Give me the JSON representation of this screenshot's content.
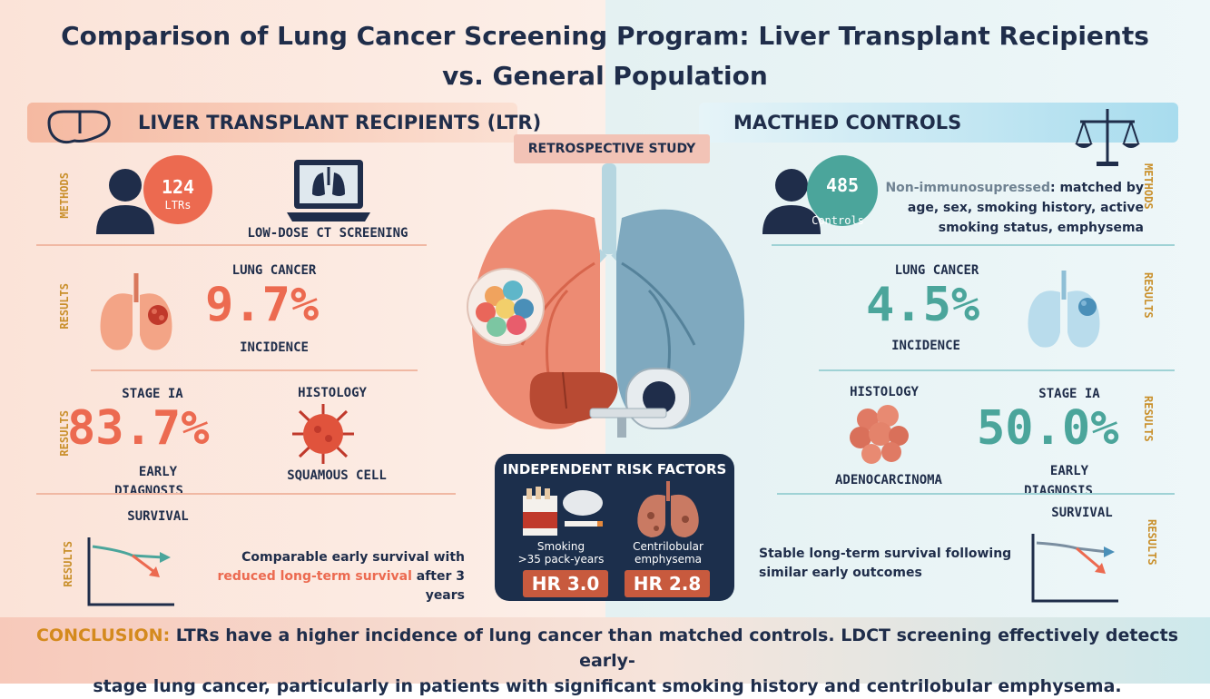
{
  "title": {
    "line1": "Comparison of Lung Cancer Screening Program: Liver Transplant Recipients",
    "line2": "vs. General Population"
  },
  "retrospective_label": "RETROSPECTIVE STUDY",
  "left": {
    "header": "LIVER TRANSPLANT RECIPIENTS (LTR)",
    "methods_label": "METHODS",
    "results_label": "RESULTS",
    "count": "124",
    "count_unit": "LTRs",
    "screening_label": "LOW-DOSE CT SCREENING",
    "incidence_title": "LUNG CANCER",
    "incidence_value": "9.7%",
    "incidence_caption": "INCIDENCE",
    "stage_title": "STAGE IA",
    "stage_value": "83.7%",
    "stage_caption_1": "EARLY",
    "stage_caption_2": "DIAGNOSIS",
    "histology_title": "HISTOLOGY",
    "histology_value": "SQUAMOUS CELL",
    "survival_title": "SURVIVAL",
    "survival_text_1": "Comparable early survival with",
    "survival_text_highlight": "reduced long-term survival",
    "survival_text_2": " after 3 years"
  },
  "right": {
    "header": "MACTHED CONTROLS",
    "methods_label": "METHODS",
    "results_label": "RESULTS",
    "count": "485",
    "count_unit": "Controls",
    "controls_bold_prefix": "Non-immunosupressed",
    "controls_text_1": ": matched by",
    "controls_text_2": "age, sex, smoking history, active",
    "controls_text_3": "smoking status, emphysema",
    "incidence_title": "LUNG CANCER",
    "incidence_value": "4.5%",
    "incidence_caption": "INCIDENCE",
    "histology_title": "HISTOLOGY",
    "histology_value": "ADENOCARCINOMA",
    "stage_title": "STAGE IA",
    "stage_value": "50.0%",
    "stage_caption_1": "EARLY",
    "stage_caption_2": "DIAGNOSIS",
    "survival_title": "SURVIVAL",
    "survival_text_1": "Stable long-term survival following",
    "survival_text_2": "similar early outcomes"
  },
  "risk": {
    "title": "INDEPENDENT RISK FACTORS",
    "smoking_label_1": "Smoking",
    "smoking_label_2": ">35 pack-years",
    "smoking_hr": "HR 3.0",
    "emphysema_label_1": "Centrilobular",
    "emphysema_label_2": "emphysema",
    "emphysema_hr": "HR 2.8"
  },
  "conclusion": {
    "label": "CONCLUSION:",
    "text_1": " LTRs have a higher incidence of lung cancer than matched controls. LDCT screening  effectively detects early-",
    "text_2": "stage lung cancer, particularly in patients with significant smoking history and centrilobular emphysema."
  },
  "colors": {
    "navy": "#1f2d4a",
    "coral": "#ec6a50",
    "teal": "#4ba59b",
    "gold": "#c98f2a"
  }
}
